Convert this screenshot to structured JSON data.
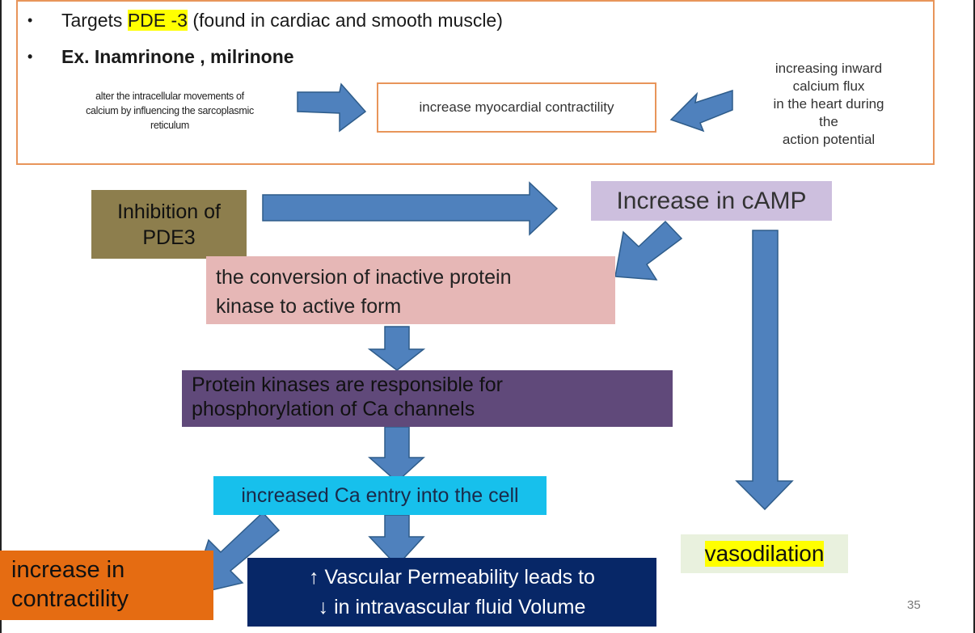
{
  "bullets": [
    {
      "prefix": "Targets ",
      "highlight": "PDE -3",
      "suffix": " (found in cardiac and smooth muscle)"
    },
    {
      "text": "Ex. Inamrinone , milrinone"
    }
  ],
  "notes": {
    "left": "alter the intracellular movements of calcium by influencing the sarcoplasmic reticulum",
    "right": [
      "increasing inward",
      "calcium flux",
      "in the heart during",
      "the",
      "action potential"
    ]
  },
  "boxes": {
    "myocardial": "increase myocardial contractility",
    "inhibition": [
      "Inhibition of",
      "PDE3"
    ],
    "camp": "Increase in cAMP",
    "conversion": [
      "the conversion of inactive protein",
      "kinase to active form"
    ],
    "kinases": [
      "Protein kinases are responsible for",
      "phosphorylation of Ca channels"
    ],
    "ca_entry": "increased Ca entry into the cell",
    "vasodilation": "vasodilation",
    "contractility": [
      "increase in",
      "contractility"
    ],
    "vascular": [
      "↑ Vascular Permeability leads to",
      "↓ in intravascular fluid Volume"
    ]
  },
  "page_number": "35",
  "colors": {
    "arrow": "#4f81bd",
    "arrow_stroke": "#2e5c8a",
    "highlight": "#ffff00",
    "border_orange": "#e8955a"
  }
}
